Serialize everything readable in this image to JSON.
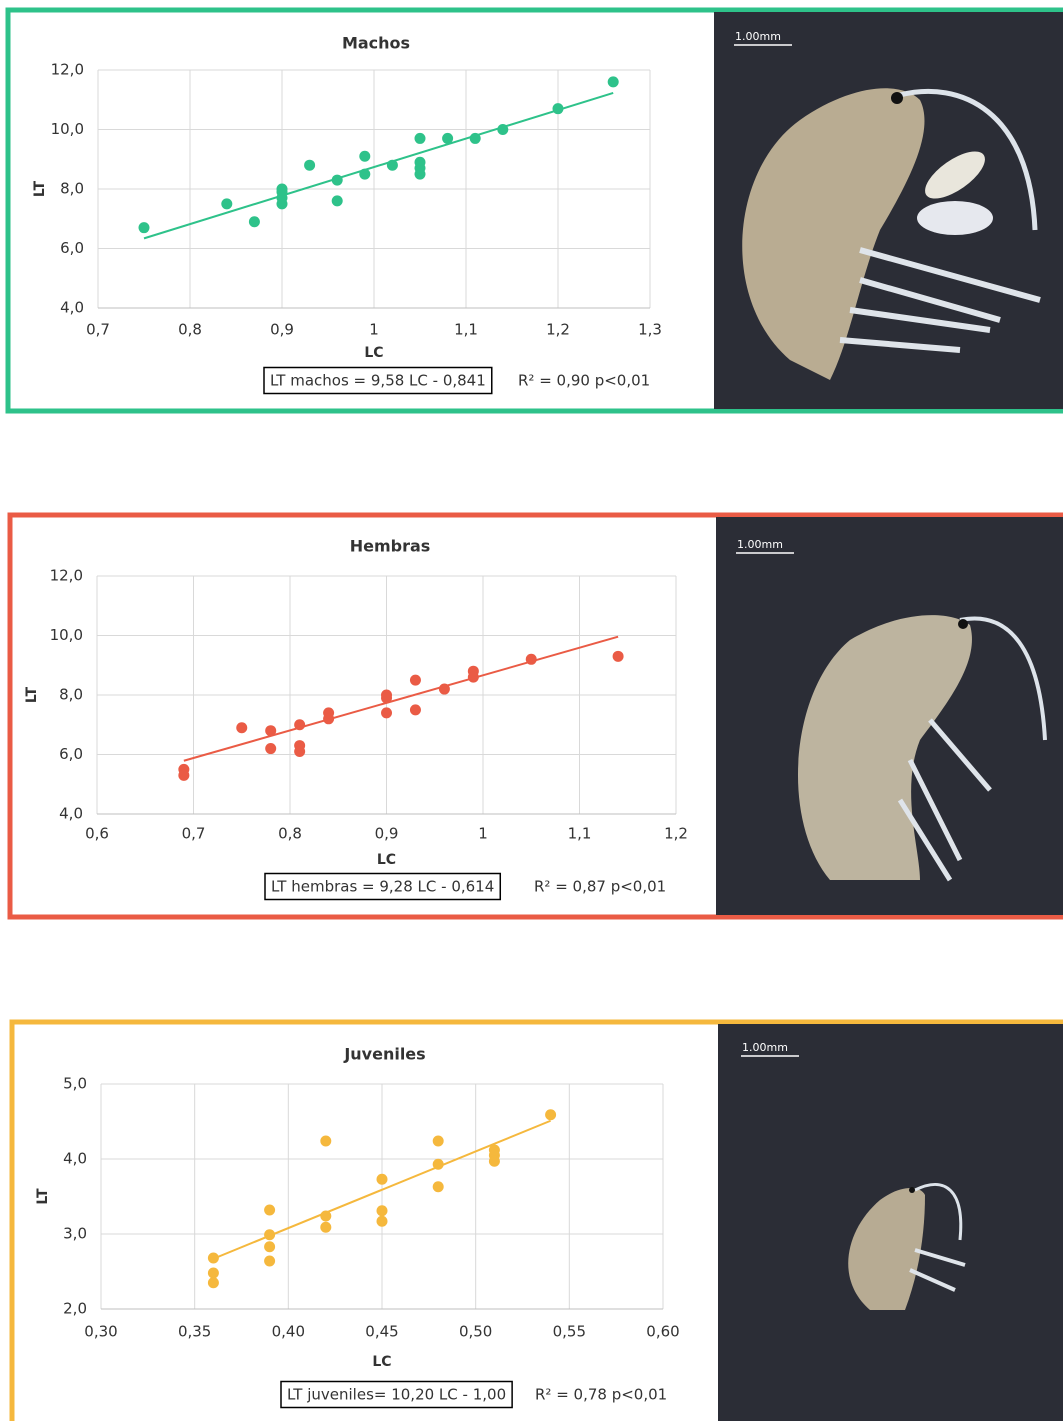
{
  "chart_data": [
    {
      "type": "scatter",
      "title": "Machos",
      "x_label": "LC",
      "y_label": "LT",
      "color": "#2ec28a",
      "grid": true,
      "x": [
        0.75,
        0.84,
        0.87,
        0.9,
        0.9,
        0.9,
        0.9,
        0.93,
        0.96,
        0.96,
        0.99,
        0.99,
        1.02,
        1.05,
        1.05,
        1.05,
        1.05,
        1.08,
        1.11,
        1.14,
        1.2,
        1.26
      ],
      "values": [
        6.7,
        7.5,
        6.9,
        8.0,
        7.9,
        7.7,
        7.5,
        8.8,
        8.3,
        7.6,
        9.1,
        8.5,
        8.8,
        9.7,
        8.9,
        8.7,
        8.5,
        9.7,
        9.7,
        10.0,
        10.7,
        11.6
      ],
      "trendline": {
        "x": [
          0.75,
          1.26
        ],
        "values": [
          6.34,
          11.23
        ]
      },
      "xlim": [
        0.7,
        1.3
      ],
      "ylim": [
        4,
        12
      ],
      "xticks": [
        {
          "value": 0.7,
          "label": "0,7"
        },
        {
          "value": 0.8,
          "label": "0,8"
        },
        {
          "value": 0.9,
          "label": "0,9"
        },
        1,
        {
          "value": 1.1,
          "label": "1,1"
        },
        {
          "value": 1.2,
          "label": "1,2"
        },
        {
          "value": 1.3,
          "label": "1,3"
        }
      ],
      "yticks": [
        {
          "value": 4,
          "label": "4,0"
        },
        {
          "value": 6,
          "label": "6,0"
        },
        {
          "value": 8,
          "label": "8,0"
        },
        {
          "value": 10,
          "label": "10,0"
        },
        {
          "value": 12,
          "label": "12,0"
        }
      ],
      "equation": "LT machos = 9,58 LC - 0,841",
      "stats": "R² = 0,90  p<0,01"
    },
    {
      "type": "scatter",
      "title": "Hembras",
      "x_label": "LC",
      "y_label": "LT",
      "color": "#ea5b45",
      "grid": true,
      "x": [
        0.69,
        0.69,
        0.75,
        0.78,
        0.78,
        0.81,
        0.81,
        0.81,
        0.84,
        0.84,
        0.9,
        0.9,
        0.9,
        0.93,
        0.93,
        0.96,
        0.99,
        0.99,
        1.05,
        1.14
      ],
      "values": [
        5.5,
        5.3,
        6.9,
        6.8,
        6.2,
        7.0,
        6.3,
        6.1,
        7.4,
        7.2,
        8.0,
        7.9,
        7.4,
        8.5,
        7.5,
        8.2,
        8.8,
        8.6,
        9.2,
        9.3
      ],
      "trendline": {
        "x": [
          0.69,
          1.14
        ],
        "values": [
          5.79,
          9.96
        ]
      },
      "xlim": [
        0.6,
        1.2
      ],
      "ylim": [
        4,
        12
      ],
      "xticks": [
        {
          "value": 0.6,
          "label": "0,6"
        },
        {
          "value": 0.7,
          "label": "0,7"
        },
        {
          "value": 0.8,
          "label": "0,8"
        },
        {
          "value": 0.9,
          "label": "0,9"
        },
        1,
        {
          "value": 1.1,
          "label": "1,1"
        },
        {
          "value": 1.2,
          "label": "1,2"
        }
      ],
      "yticks": [
        {
          "value": 4,
          "label": "4,0"
        },
        {
          "value": 6,
          "label": "6,0"
        },
        {
          "value": 8,
          "label": "8,0"
        },
        {
          "value": 10,
          "label": "10,0"
        },
        {
          "value": 12,
          "label": "12,0"
        }
      ],
      "equation": "LT hembras  = 9,28 LC - 0,614",
      "stats": "R² = 0,87  p<0,01"
    },
    {
      "type": "scatter",
      "title": "Juveniles",
      "x_label": "LC",
      "y_label": "LT",
      "color": "#f5b83d",
      "grid": true,
      "x": [
        0.36,
        0.36,
        0.36,
        0.39,
        0.39,
        0.39,
        0.39,
        0.42,
        0.42,
        0.42,
        0.45,
        0.45,
        0.45,
        0.48,
        0.48,
        0.48,
        0.51,
        0.51,
        0.51,
        0.54
      ],
      "values": [
        2.68,
        2.48,
        2.35,
        3.32,
        2.99,
        2.83,
        2.64,
        4.24,
        3.24,
        3.09,
        3.73,
        3.31,
        3.17,
        4.24,
        3.93,
        3.63,
        4.12,
        4.05,
        3.97,
        4.59
      ],
      "trendline": {
        "x": [
          0.36,
          0.54
        ],
        "values": [
          2.67,
          4.51
        ]
      },
      "xlim": [
        0.3,
        0.6
      ],
      "ylim": [
        2,
        5
      ],
      "xticks": [
        {
          "value": 0.3,
          "label": "0,30"
        },
        {
          "value": 0.35,
          "label": "0,35"
        },
        {
          "value": 0.4,
          "label": "0,40"
        },
        {
          "value": 0.45,
          "label": "0,45"
        },
        {
          "value": 0.5,
          "label": "0,50"
        },
        {
          "value": 0.55,
          "label": "0,55"
        },
        {
          "value": 0.6,
          "label": "0,60"
        }
      ],
      "yticks": [
        {
          "value": 2,
          "label": "2,0"
        },
        {
          "value": 3,
          "label": "3,0"
        },
        {
          "value": 4,
          "label": "4,0"
        },
        {
          "value": 5,
          "label": "5,0"
        }
      ],
      "equation": "LT juveniles=  10,20  LC - 1,00",
      "stats": "R² = 0,78  p<0,01"
    }
  ],
  "photos": [
    {
      "scale_label": "1.00mm"
    },
    {
      "scale_label": "1.00mm"
    },
    {
      "scale_label": "1.00mm"
    }
  ]
}
